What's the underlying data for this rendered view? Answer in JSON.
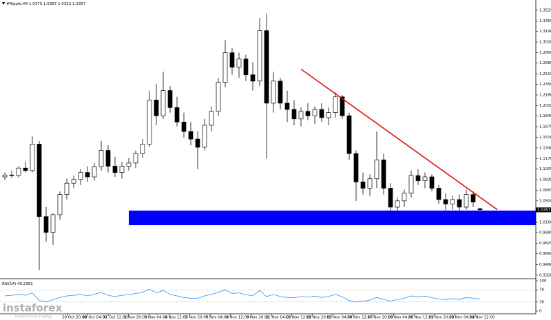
{
  "chart_data": {
    "type": "candlestick",
    "title": "#Ripple,H4",
    "open": [
      1.088,
      1.091,
      1.09,
      1.102,
      1.098,
      1.14,
      1.025,
      1.0,
      1.028,
      1.06,
      1.078,
      1.084,
      1.095,
      1.088,
      1.104,
      1.13,
      1.105,
      1.095,
      1.105,
      1.11,
      1.125,
      1.14,
      1.21,
      1.185,
      1.225,
      1.198,
      1.175,
      1.16,
      1.148,
      1.135,
      1.17,
      1.192,
      1.238,
      1.285,
      1.262,
      1.275,
      1.25,
      1.24,
      1.32,
      1.205,
      1.24,
      1.205,
      1.195,
      1.18,
      1.192,
      1.185,
      1.195,
      1.182,
      1.19,
      1.215,
      1.185,
      1.125,
      1.08,
      1.07,
      1.085,
      1.115,
      1.07,
      1.04,
      1.05,
      1.062,
      1.09,
      1.082,
      1.088,
      1.07,
      1.052,
      1.045,
      1.052,
      1.04,
      1.06,
      1.0375
    ],
    "high": [
      1.095,
      1.098,
      1.105,
      1.112,
      1.152,
      1.145,
      1.04,
      1.03,
      1.065,
      1.085,
      1.09,
      1.1,
      1.105,
      1.11,
      1.145,
      1.138,
      1.12,
      1.112,
      1.118,
      1.13,
      1.148,
      1.225,
      1.235,
      1.255,
      1.232,
      1.215,
      1.19,
      1.175,
      1.16,
      1.18,
      1.2,
      1.245,
      1.305,
      1.292,
      1.285,
      1.282,
      1.27,
      1.34,
      1.347,
      1.255,
      1.245,
      1.225,
      1.21,
      1.198,
      1.205,
      1.2,
      1.205,
      1.198,
      1.222,
      1.218,
      1.19,
      1.13,
      1.095,
      1.092,
      1.16,
      1.125,
      1.078,
      1.055,
      1.068,
      1.098,
      1.1,
      1.095,
      1.092,
      1.075,
      1.062,
      1.058,
      1.06,
      1.068,
      1.065,
      1.0387
    ],
    "low": [
      1.083,
      1.086,
      1.087,
      1.095,
      1.095,
      0.94,
      0.985,
      0.98,
      1.02,
      1.052,
      1.07,
      1.075,
      1.08,
      1.082,
      1.098,
      1.095,
      1.088,
      1.085,
      1.098,
      1.102,
      1.118,
      1.135,
      1.17,
      1.18,
      1.19,
      1.168,
      1.15,
      1.138,
      1.1,
      1.13,
      1.16,
      1.185,
      1.23,
      1.25,
      1.245,
      1.24,
      1.225,
      1.232,
      1.117,
      1.19,
      1.195,
      1.175,
      1.17,
      1.168,
      1.178,
      1.172,
      1.175,
      1.17,
      1.182,
      1.18,
      1.115,
      1.05,
      1.06,
      1.058,
      1.07,
      1.06,
      1.032,
      1.033,
      1.04,
      1.055,
      1.075,
      1.07,
      1.065,
      1.045,
      1.035,
      1.036,
      1.034,
      1.036,
      1.04,
      1.0352
    ],
    "close": [
      1.091,
      1.09,
      1.102,
      1.098,
      1.14,
      1.025,
      1.0,
      1.028,
      1.06,
      1.078,
      1.084,
      1.095,
      1.088,
      1.104,
      1.13,
      1.105,
      1.095,
      1.105,
      1.11,
      1.125,
      1.14,
      1.21,
      1.185,
      1.225,
      1.198,
      1.175,
      1.16,
      1.148,
      1.135,
      1.17,
      1.192,
      1.238,
      1.285,
      1.262,
      1.275,
      1.25,
      1.24,
      1.32,
      1.205,
      1.24,
      1.205,
      1.195,
      1.18,
      1.192,
      1.185,
      1.195,
      1.182,
      1.19,
      1.215,
      1.185,
      1.125,
      1.08,
      1.07,
      1.085,
      1.115,
      1.07,
      1.04,
      1.05,
      1.062,
      1.09,
      1.082,
      1.088,
      1.07,
      1.052,
      1.045,
      1.052,
      1.04,
      1.06,
      1.048,
      1.0357
    ],
    "ylim": [
      0.9275,
      1.3665
    ],
    "yticks": [
      1.3525,
      1.3355,
      {
        "value": 1.319,
        "label": "1.3190"
      },
      {
        "value": 1.302,
        "label": "1.3020"
      },
      {
        "value": 1.285,
        "label": "1.2850"
      },
      1.2685,
      1.2515,
      {
        "value": 1.235,
        "label": "1.2350"
      },
      {
        "value": 1.218,
        "label": "1.2180"
      },
      {
        "value": 1.201,
        "label": "1.2010"
      },
      1.1845,
      1.1675,
      {
        "value": 1.151,
        "label": "1.1510"
      },
      {
        "value": 1.134,
        "label": "1.1340"
      },
      {
        "value": 1.117,
        "label": "1.1170"
      },
      1.1005,
      1.0835,
      1.0665,
      {
        "value": 1.05,
        "label": "1.0500"
      },
      {
        "value": 1.016,
        "label": "1.0160"
      },
      0.9995,
      0.9825,
      {
        "value": 0.966,
        "label": "0.9660"
      },
      {
        "value": 0.949,
        "label": "0.9490"
      },
      {
        "value": 0.932,
        "label": "0.9320"
      }
    ],
    "xtick_labels": [
      "28 Oct 20:00",
      "30 Oct 04:00",
      "31 Oct 12:00",
      "1 Nov 20:00",
      "3 Nov 04:00",
      "4 Nov 12:00",
      "5 Nov 20:00",
      "7 Nov 04:00",
      "8 Nov 12:00",
      "9 Nov 20:00",
      "11 Nov 04:00",
      "12 Nov 12:00",
      "13 Nov 20:00",
      "15 Nov 04:00",
      "16 Nov 12:00",
      "17 Nov 20:00",
      "19 Nov 04:00",
      "20 Nov 12:00",
      "21 Nov 20:00",
      "23 Nov 04:00",
      "24 Nov 12:00"
    ],
    "zone": {
      "low": 1.0115,
      "high": 1.0345,
      "start_index": 18,
      "color": "#0000ff"
    },
    "trendline": {
      "from": [
        43,
        1.259
      ],
      "to": [
        71.5,
        1.036
      ],
      "color": "#e00000"
    },
    "rsi": {
      "name": "RSI(14)",
      "color": "#1e90ff",
      "values": [
        50,
        52,
        55,
        52,
        60,
        35,
        30,
        38,
        45,
        50,
        52,
        55,
        50,
        55,
        62,
        52,
        48,
        52,
        54,
        58,
        62,
        72,
        60,
        68,
        55,
        50,
        45,
        42,
        42,
        50,
        55,
        62,
        70,
        58,
        60,
        54,
        50,
        68,
        48,
        55,
        48,
        45,
        44,
        48,
        46,
        49,
        45,
        48,
        55,
        47,
        35,
        30,
        32,
        36,
        45,
        38,
        33,
        38,
        42,
        50,
        47,
        49,
        44,
        40,
        38,
        41,
        38,
        45,
        42,
        40.2381
      ],
      "ylim": [
        0,
        100
      ],
      "yticks": [
        100,
        70,
        30,
        0
      ],
      "levels": [
        70,
        30
      ]
    },
    "watermark": {
      "brand": "instaforex",
      "tagline": "Instant Forex Trading"
    }
  }
}
